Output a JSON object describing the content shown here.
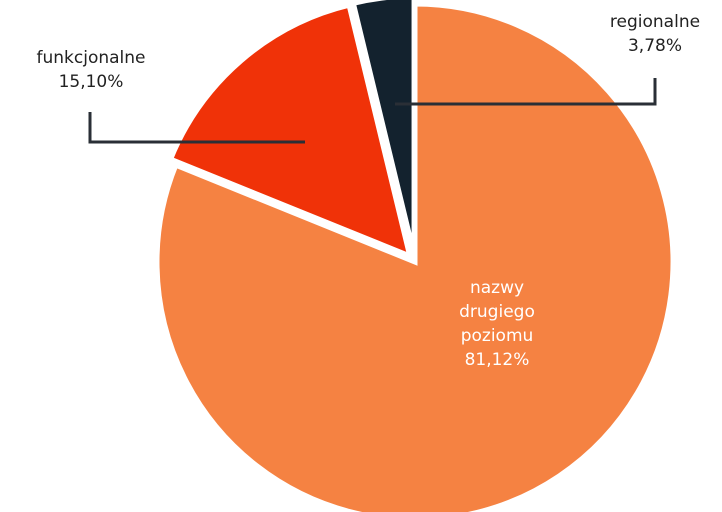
{
  "chart_data": {
    "type": "pie",
    "categories": [
      "nazwy drugiego poziomu",
      "funkcjonalne",
      "regionalne"
    ],
    "values": [
      81.12,
      15.1,
      3.78
    ],
    "value_labels": [
      "81,12%",
      "15,10%",
      "3,78%"
    ],
    "colors": [
      "#f58242",
      "#f03208",
      "#13222e"
    ]
  }
}
